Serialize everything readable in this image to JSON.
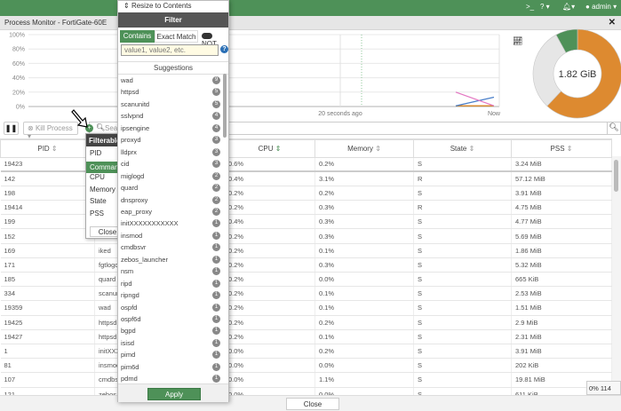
{
  "topbar": {
    "cli_icon": "terminal-icon",
    "help_icon": "question-circle-icon",
    "bell_icon": "bell-icon",
    "user_icon": "user-circle-icon",
    "user": "admin"
  },
  "window": {
    "title": "Process Monitor - FortiGate-60E",
    "close_icon": "close-icon"
  },
  "chart_data": [
    {
      "type": "line",
      "y_ticks": [
        "100%",
        "80%",
        "60%",
        "40%",
        "20%",
        "0%"
      ],
      "ylim": [
        0,
        100
      ],
      "x_ticks": [
        "20 seconds ago",
        "Now"
      ],
      "grid": true,
      "series": [
        {
          "color": "#e377c2",
          "values": [
            20,
            0
          ]
        },
        {
          "color": "#4a7fc9",
          "values": [
            0,
            13
          ]
        },
        {
          "color": "#e08a2e",
          "values": [
            0,
            0
          ]
        },
        {
          "color": "#4e9158",
          "values": [
            0,
            0
          ]
        }
      ]
    },
    {
      "type": "pie",
      "center_label": "1.82 GiB",
      "slices": [
        {
          "color": "#dd8a30",
          "fraction": 0.62
        },
        {
          "color": "#e6e6e6",
          "fraction": 0.3
        },
        {
          "color": "#4e9158",
          "fraction": 0.08
        }
      ]
    }
  ],
  "toolbar": {
    "pause_icon": "pause-icon",
    "kill_label": "Kill Process",
    "search_placeholder": "Search",
    "stats_icon": "line-chart-icon"
  },
  "table": {
    "columns": [
      "PID",
      "Command",
      "CPU",
      "Memory",
      "State",
      "PSS"
    ],
    "rows": [
      [
        "19423",
        "",
        "0.6%",
        "0.2%",
        "S",
        "3.24 MiB"
      ],
      [
        "142",
        "",
        "0.4%",
        "3.1%",
        "R",
        "57.12 MiB"
      ],
      [
        "198",
        "",
        "0.2%",
        "0.2%",
        "S",
        "3.91 MiB"
      ],
      [
        "19414",
        "",
        "0.2%",
        "0.3%",
        "R",
        "4.75 MiB"
      ],
      [
        "199",
        "",
        "0.4%",
        "0.3%",
        "S",
        "4.77 MiB"
      ],
      [
        "152",
        "",
        "0.2%",
        "0.3%",
        "S",
        "5.69 MiB"
      ],
      [
        "169",
        "iked",
        "0.2%",
        "0.1%",
        "S",
        "1.86 MiB"
      ],
      [
        "171",
        "fgtlogd",
        "0.2%",
        "0.3%",
        "S",
        "5.32 MiB"
      ],
      [
        "185",
        "quard",
        "0.2%",
        "0.0%",
        "S",
        "665 KiB"
      ],
      [
        "334",
        "scanunitd",
        "0.2%",
        "0.1%",
        "S",
        "2.53 MiB"
      ],
      [
        "19359",
        "wad",
        "0.2%",
        "0.1%",
        "S",
        "1.51 MiB"
      ],
      [
        "19425",
        "httpsd",
        "0.2%",
        "0.2%",
        "S",
        "2.9 MiB"
      ],
      [
        "19427",
        "httpsd",
        "0.2%",
        "0.1%",
        "S",
        "2.31 MiB"
      ],
      [
        "1",
        "initXXXXXXXXXXX",
        "0.0%",
        "0.2%",
        "S",
        "3.91 MiB"
      ],
      [
        "81",
        "insmod",
        "0.0%",
        "0.0%",
        "S",
        "202 KiB"
      ],
      [
        "107",
        "cmdbsvr",
        "0.0%",
        "1.1%",
        "S",
        "19.81 MiB"
      ],
      [
        "121",
        "zebos_launcher",
        "0.0%",
        "0.0%",
        "S",
        "611 KiB"
      ]
    ]
  },
  "filterable": {
    "title": "Filterable",
    "items": [
      "PID",
      "Command",
      "CPU",
      "Memory",
      "State",
      "PSS"
    ],
    "close": "Close",
    "selected": "Command"
  },
  "filter": {
    "resize": "Resize to Contents",
    "title": "Filter",
    "contains": "Contains",
    "exact": "Exact Match",
    "not": "NOT",
    "placeholder": "value1, value2, etc.",
    "suggestions_title": "Suggestions",
    "apply": "Apply",
    "suggestions": [
      {
        "name": "wad",
        "count": "9"
      },
      {
        "name": "httpsd",
        "count": "5"
      },
      {
        "name": "scanunitd",
        "count": "5"
      },
      {
        "name": "sslvpnd",
        "count": "4"
      },
      {
        "name": "ipsengine",
        "count": "4"
      },
      {
        "name": "proxyd",
        "count": "3"
      },
      {
        "name": "lldprx",
        "count": "3"
      },
      {
        "name": "cid",
        "count": "3"
      },
      {
        "name": "miglogd",
        "count": "2"
      },
      {
        "name": "quard",
        "count": "2"
      },
      {
        "name": "dnsproxy",
        "count": "2"
      },
      {
        "name": "eap_proxy",
        "count": "2"
      },
      {
        "name": "initXXXXXXXXXXX",
        "count": "1"
      },
      {
        "name": "insmod",
        "count": "1"
      },
      {
        "name": "cmdbsvr",
        "count": "1"
      },
      {
        "name": "zebos_launcher",
        "count": "1"
      },
      {
        "name": "nsm",
        "count": "1"
      },
      {
        "name": "ripd",
        "count": "1"
      },
      {
        "name": "ripngd",
        "count": "1"
      },
      {
        "name": "ospfd",
        "count": "1"
      },
      {
        "name": "ospf6d",
        "count": "1"
      },
      {
        "name": "bgpd",
        "count": "1"
      },
      {
        "name": "isisd",
        "count": "1"
      },
      {
        "name": "pimd",
        "count": "1"
      },
      {
        "name": "pim6d",
        "count": "1"
      },
      {
        "name": "pdmd",
        "count": "1"
      }
    ]
  },
  "footer": {
    "close": "Close",
    "stat": "0% 114"
  }
}
